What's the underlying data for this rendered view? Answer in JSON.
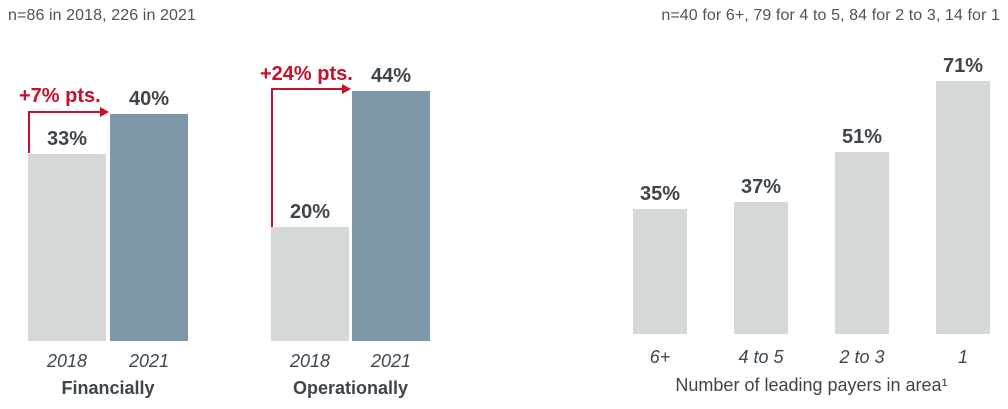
{
  "colors": {
    "bar_gray": "#d5d8d9",
    "bar_blue": "#7e97a9",
    "accent_red": "#c4122e",
    "text_dark": "#3d464d",
    "note_gray": "#4b545a"
  },
  "chart_data": [
    {
      "type": "bar",
      "title": "Financially",
      "note": "n=86 in 2018, 226 in 2021",
      "categories": [
        "2018",
        "2021"
      ],
      "values": [
        33,
        40
      ],
      "labels": [
        "33%",
        "40%"
      ],
      "delta": "+7% pts.",
      "bar_colors": [
        "#d5d8d9",
        "#7e97a9"
      ],
      "ylim": [
        0,
        50
      ],
      "legend": "none",
      "grid": "off"
    },
    {
      "type": "bar",
      "title": "Operationally",
      "note": "n=86 in 2018, 226 in 2021",
      "categories": [
        "2018",
        "2021"
      ],
      "values": [
        20,
        44
      ],
      "labels": [
        "20%",
        "44%"
      ],
      "delta": "+24% pts.",
      "bar_colors": [
        "#d5d8d9",
        "#7e97a9"
      ],
      "ylim": [
        0,
        50
      ],
      "legend": "none",
      "grid": "off"
    },
    {
      "type": "bar",
      "title": "",
      "xlabel": "Number of leading payers in area¹",
      "note": "n=40 for 6+, 79 for 4 to 5, 84 for 2 to 3, 14 for 1",
      "categories": [
        "6+",
        "4 to 5",
        "2 to 3",
        "1"
      ],
      "values": [
        35,
        37,
        51,
        71
      ],
      "labels": [
        "35%",
        "37%",
        "51%",
        "71%"
      ],
      "bar_colors": [
        "#d5d8d9",
        "#d5d8d9",
        "#d5d8d9",
        "#d5d8d9"
      ],
      "ylim": [
        0,
        80
      ],
      "legend": "none",
      "grid": "off"
    }
  ]
}
